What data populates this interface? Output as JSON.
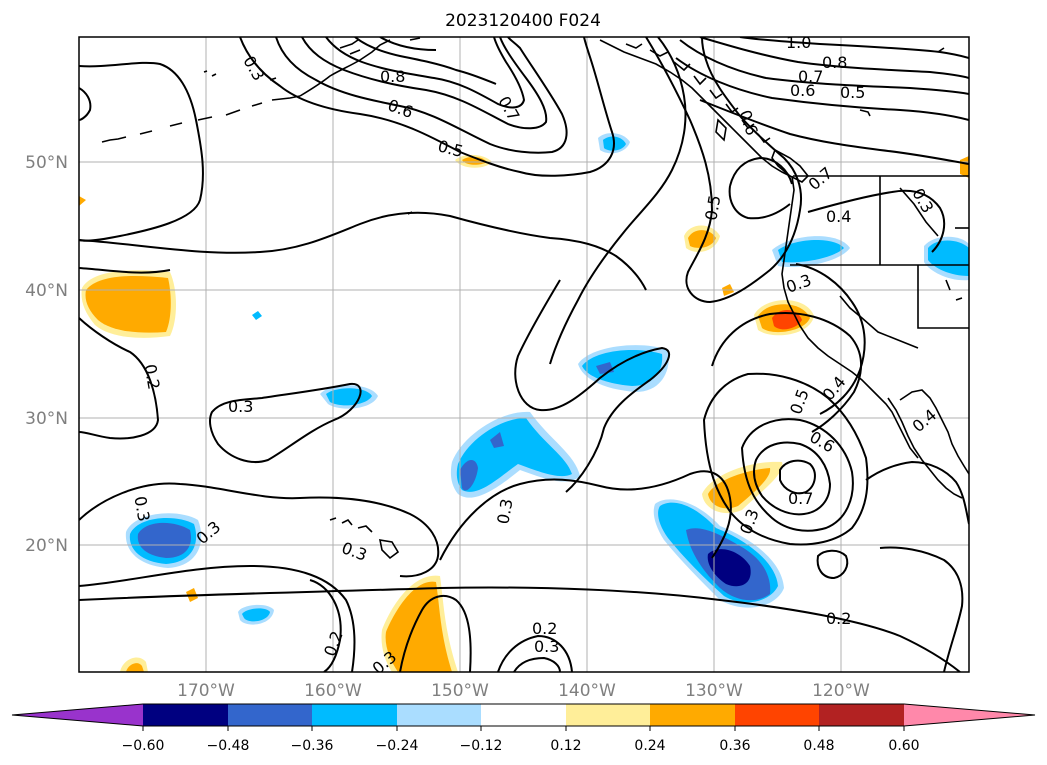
{
  "title": "2023120400 F024",
  "lat_labels": [
    "50°N",
    "40°N",
    "30°N",
    "20°N"
  ],
  "lon_labels": [
    "170°W",
    "160°W",
    "150°W",
    "140°W",
    "130°W",
    "120°W"
  ],
  "colorbar": {
    "tick_labels": [
      "−0.60",
      "−0.48",
      "−0.36",
      "−0.24",
      "−0.12",
      "0.12",
      "0.24",
      "0.36",
      "0.48",
      "0.60"
    ],
    "colors": [
      "#9933cc",
      "#000080",
      "#3366cc",
      "#00bbff",
      "#aaddff",
      "#ffffff",
      "#ffee99",
      "#ffaa00",
      "#ff4400",
      "#b22222",
      "#ff88aa"
    ]
  },
  "contour_labels": [
    "1.0",
    "0.8",
    "0.7",
    "0.6",
    "0.5",
    "0.3",
    "0.8",
    "0.6",
    "0.5",
    "0.7",
    "0.6",
    "0.5",
    "0.7",
    "0.4",
    "0.3",
    "0.3",
    "0.2",
    "0.3",
    "0.3",
    "0.3",
    "0.3",
    "0.2",
    "0.3",
    "0.3",
    "0.5",
    "0.4",
    "0.6",
    "0.7",
    "0.3",
    "0.2",
    "0.2",
    "0.3",
    "0.4"
  ]
}
